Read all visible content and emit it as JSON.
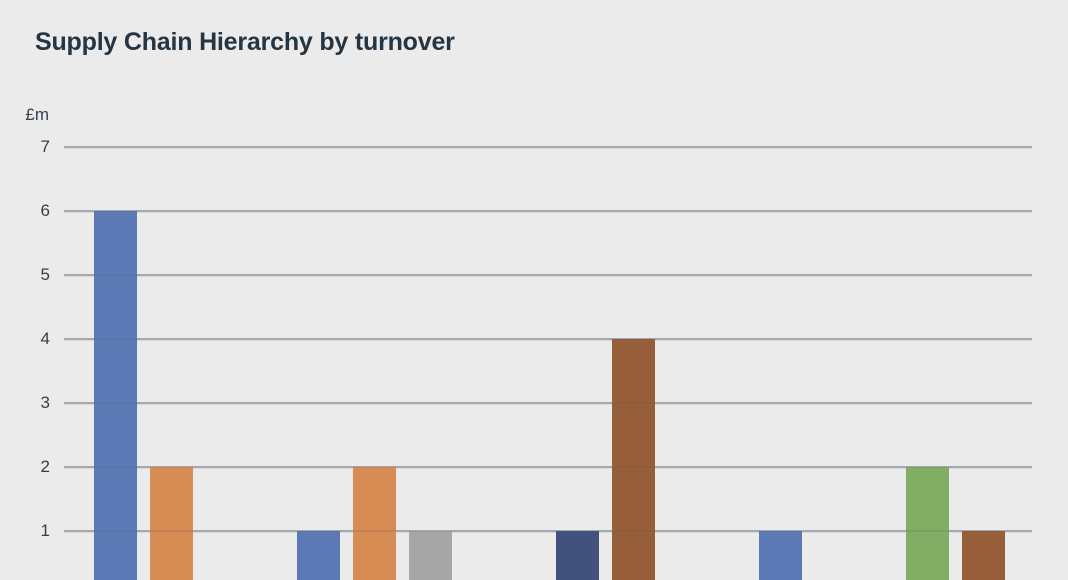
{
  "chart_data": {
    "type": "bar",
    "title": "Supply Chain Hierarchy by turnover",
    "ylabel": "£m",
    "xlabel": "",
    "ylim": [
      0,
      7
    ],
    "yticks": [
      7,
      6,
      5,
      4,
      3,
      2,
      1
    ],
    "grid": true,
    "legend_position": "none",
    "x_tick_labels_visible": false,
    "colors": {
      "blue": "#5a79b5",
      "orange": "#d78c54",
      "gray": "#a6a6a6",
      "navy": "#42527c",
      "brown": "#975f39",
      "green": "#82ad64"
    },
    "groups": [
      {
        "bars": [
          {
            "series": "blue",
            "value": 6
          },
          {
            "series": "orange",
            "value": 2
          }
        ]
      },
      {
        "bars": [
          {
            "series": "blue",
            "value": 1
          },
          {
            "series": "orange",
            "value": 2
          },
          {
            "series": "gray",
            "value": 1
          }
        ]
      },
      {
        "bars": [
          {
            "series": "navy",
            "value": 1
          },
          {
            "series": "brown",
            "value": 4
          }
        ]
      },
      {
        "bars": [
          {
            "series": "blue",
            "value": 1
          }
        ]
      },
      {
        "bars": [
          {
            "series": "green",
            "value": 2
          },
          {
            "series": "brown",
            "value": 1
          }
        ]
      }
    ],
    "background_color": "#ebebec",
    "title_color": "#253541",
    "gridline_color": "#b4b7bc"
  }
}
